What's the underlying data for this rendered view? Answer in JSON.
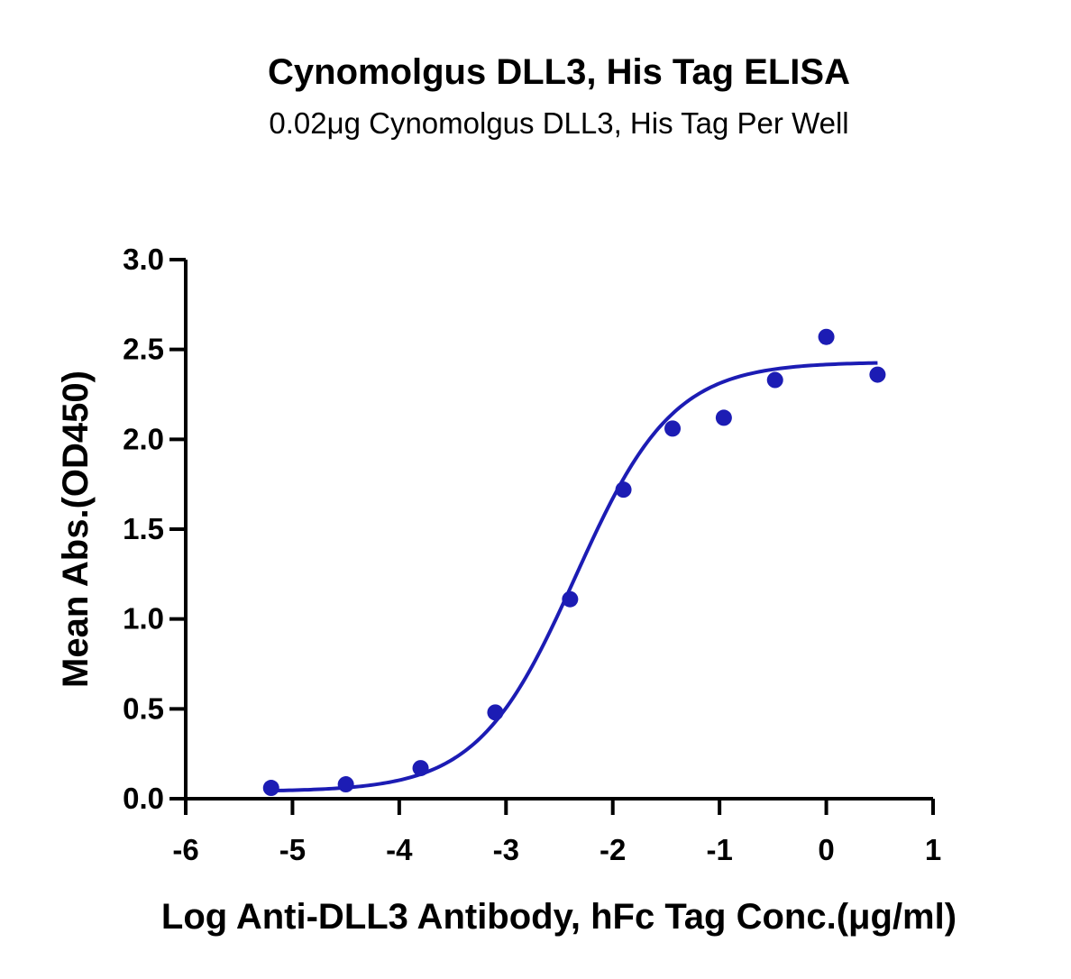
{
  "chart_data": {
    "type": "scatter",
    "title": "Cynomolgus DLL3, His Tag ELISA",
    "subtitle": "0.02μg Cynomolgus DLL3, His Tag Per Well",
    "xlabel": "Log Anti-DLL3 Antibody, hFc Tag Conc.(μg/ml)",
    "ylabel": "Mean Abs.(OD450)",
    "xlim": [
      -6,
      1
    ],
    "ylim": [
      0,
      3
    ],
    "xticks": [
      "-6",
      "-5",
      "-4",
      "-3",
      "-2",
      "-1",
      "0",
      "1"
    ],
    "yticks": [
      "0.0",
      "0.5",
      "1.0",
      "1.5",
      "2.0",
      "2.5",
      "3.0"
    ],
    "grid": false,
    "color": "#1c1cb4",
    "series": [
      {
        "x": [
          -5.2,
          -4.5,
          -3.8,
          -3.1,
          -2.4,
          -1.9,
          -1.44,
          -0.96,
          -0.48,
          0.0,
          0.48
        ],
        "y": [
          0.06,
          0.08,
          0.17,
          0.48,
          1.11,
          1.72,
          2.06,
          2.12,
          2.33,
          2.57,
          2.36
        ]
      }
    ],
    "fit_curve": {
      "type": "4PL",
      "bottom": 0.04,
      "top": 2.43,
      "log_ec50": -2.35,
      "hill_slope": 0.95,
      "x_range": [
        -5.2,
        0.48
      ]
    }
  }
}
